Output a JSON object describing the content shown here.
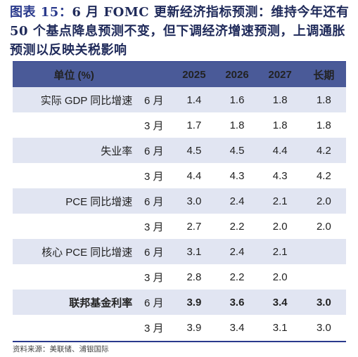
{
  "title": {
    "label": "图表 15：",
    "text": "6 月 FOMC 更新经济指标预测：维持今年还有 50 个基点降息预测不变，但下调经济增速预测，上调通胀预测以反映关税影响"
  },
  "table": {
    "headers": [
      "单位 (%)",
      "",
      "2025",
      "2026",
      "2027",
      "长期"
    ],
    "rows": [
      {
        "metric": "实际 GDP 同比增速",
        "month": "6 月",
        "values": [
          "1.4",
          "1.6",
          "1.8",
          "1.8"
        ],
        "shaded": true,
        "bold": false
      },
      {
        "metric": "",
        "month": "3 月",
        "values": [
          "1.7",
          "1.8",
          "1.8",
          "1.8"
        ],
        "shaded": false,
        "bold": false
      },
      {
        "metric": "失业率",
        "month": "6 月",
        "values": [
          "4.5",
          "4.5",
          "4.4",
          "4.2"
        ],
        "shaded": true,
        "bold": false
      },
      {
        "metric": "",
        "month": "3 月",
        "values": [
          "4.4",
          "4.3",
          "4.3",
          "4.2"
        ],
        "shaded": false,
        "bold": false
      },
      {
        "metric": "PCE 同比增速",
        "month": "6 月",
        "values": [
          "3.0",
          "2.4",
          "2.1",
          "2.0"
        ],
        "shaded": true,
        "bold": false
      },
      {
        "metric": "",
        "month": "3 月",
        "values": [
          "2.7",
          "2.2",
          "2.0",
          "2.0"
        ],
        "shaded": false,
        "bold": false
      },
      {
        "metric": "核心 PCE 同比增速",
        "month": "6 月",
        "values": [
          "3.1",
          "2.4",
          "2.1",
          ""
        ],
        "shaded": true,
        "bold": false
      },
      {
        "metric": "",
        "month": "3 月",
        "values": [
          "2.8",
          "2.2",
          "2.0",
          ""
        ],
        "shaded": false,
        "bold": false
      },
      {
        "metric": "联邦基金利率",
        "month": "6 月",
        "values": [
          "3.9",
          "3.6",
          "3.4",
          "3.0"
        ],
        "shaded": true,
        "bold": true
      },
      {
        "metric": "",
        "month": "3 月",
        "values": [
          "3.9",
          "3.4",
          "3.1",
          "3.0"
        ],
        "shaded": false,
        "bold": false
      }
    ]
  },
  "source": "资料来源：美联储、浦银国际",
  "colors": {
    "header_bg": "#4a5a98",
    "shaded_row": "#e1e5f2",
    "title": "#1f2a5a"
  }
}
